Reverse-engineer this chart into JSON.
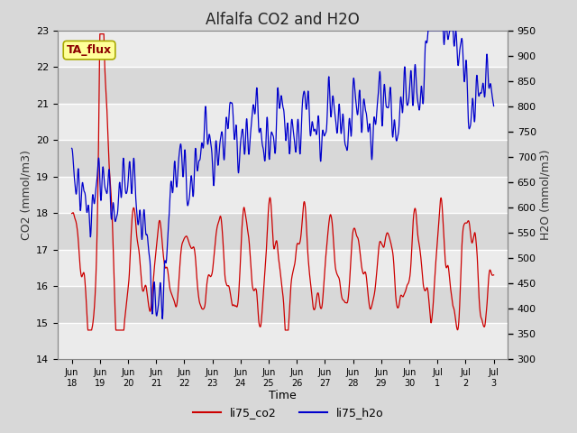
{
  "title": "Alfalfa CO2 and H2O",
  "xlabel": "Time",
  "ylabel_left": "CO2 (mmol/m3)",
  "ylabel_right": "H2O (mmol/m3)",
  "ylim_left": [
    14.0,
    23.0
  ],
  "ylim_right": [
    300,
    950
  ],
  "annotation_text": "TA_flux",
  "annotation_color": "#8B0000",
  "annotation_bg": "#FFFF99",
  "annotation_border": "#AAAA00",
  "co2_color": "#CC0000",
  "h2o_color": "#0000CC",
  "bg_color": "#D8D8D8",
  "plot_bg_light": "#EBEBEB",
  "plot_bg_dark": "#D8D8D8",
  "legend_co2": "li75_co2",
  "legend_h2o": "li75_h2o",
  "x_tick_labels": [
    "Jun\n18",
    "Jun\n19",
    "Jun\n20",
    "Jun\n21",
    "Jun\n22",
    "Jun\n23",
    "Jun\n24",
    "Jun\n25",
    "Jun\n26",
    "Jun\n27",
    "Jun\n28",
    "Jun\n29",
    "Jun\n30",
    "Jul\n1",
    "Jul\n2",
    "Jul\n3"
  ],
  "x_tick_positions": [
    0,
    1,
    2,
    3,
    4,
    5,
    6,
    7,
    8,
    9,
    10,
    11,
    12,
    13,
    14,
    15
  ],
  "yticks_left": [
    14.0,
    15.0,
    16.0,
    17.0,
    18.0,
    19.0,
    20.0,
    21.0,
    22.0,
    23.0
  ],
  "yticks_right": [
    300,
    350,
    400,
    450,
    500,
    550,
    600,
    650,
    700,
    750,
    800,
    850,
    900,
    950
  ]
}
